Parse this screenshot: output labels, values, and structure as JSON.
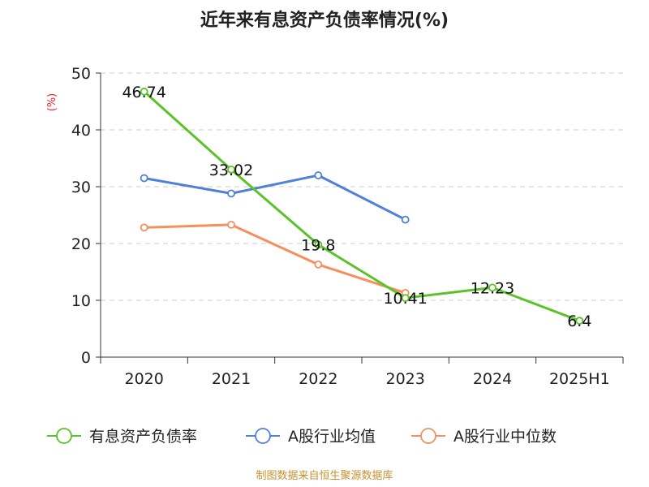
{
  "chart_data": {
    "type": "line",
    "title": "近年来有息资产负债率情况(%)",
    "ylabel": "(%)",
    "ylim": [
      0,
      50
    ],
    "yticks": [
      "0",
      "10",
      "20",
      "30",
      "40",
      "50"
    ],
    "categories": [
      "2020",
      "2021",
      "2022",
      "2023",
      "2024",
      "2025H1"
    ],
    "grid": true,
    "legend_position": "bottom",
    "series": [
      {
        "name": "有息资产负债率",
        "color": "#5bc227",
        "values": [
          46.74,
          33.02,
          19.8,
          10.41,
          12.23,
          6.4
        ],
        "labels": [
          "46.74",
          "33.02",
          "19.8",
          "10.41",
          "12.23",
          "6.4"
        ]
      },
      {
        "name": "A股行业均值",
        "color": "#4f81d9",
        "values": [
          31.5,
          28.8,
          32.0,
          24.2,
          null,
          null
        ]
      },
      {
        "name": "A股行业中位数",
        "color": "#f5905e",
        "values": [
          22.8,
          23.3,
          16.3,
          11.3,
          null,
          null
        ]
      }
    ]
  },
  "footer": {
    "source": "制图数据来自恒生聚源数据库"
  },
  "colors": {
    "axis": "#333333",
    "grid": "#cccccc",
    "ylabel": "#e3262d",
    "source": "#c8912f"
  }
}
